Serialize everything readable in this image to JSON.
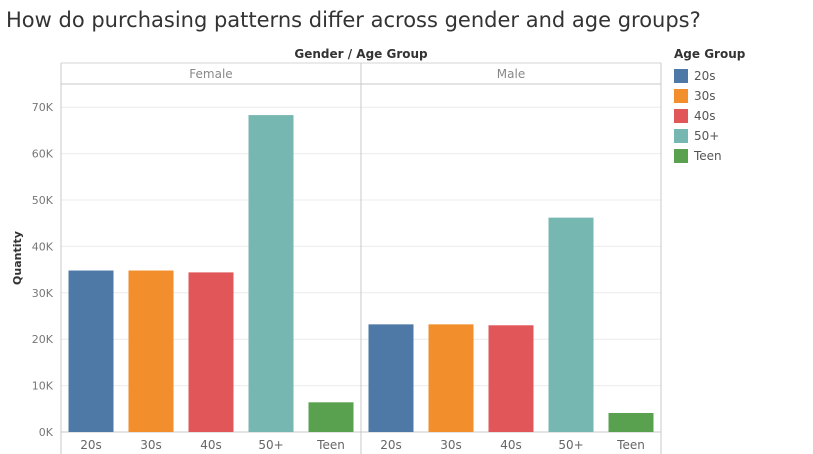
{
  "title": "How do purchasing patterns differ across gender and age groups?",
  "chart_data": {
    "type": "bar",
    "header_label": "Gender  /  Age Group",
    "ylabel": "Quantity",
    "ylim": [
      0,
      75000
    ],
    "yticks": [
      0,
      10000,
      20000,
      30000,
      40000,
      50000,
      60000,
      70000
    ],
    "ytick_labels": [
      "0K",
      "10K",
      "20K",
      "30K",
      "40K",
      "50K",
      "60K",
      "70K"
    ],
    "grid": true,
    "legend_placement": "right",
    "categories": [
      "20s",
      "30s",
      "40s",
      "50+",
      "Teen"
    ],
    "colors": {
      "20s": "#4e79a7",
      "30s": "#f28e2b",
      "40s": "#e15759",
      "50+": "#76b7b2",
      "Teen": "#59a14f"
    },
    "panels": [
      {
        "name": "Female",
        "values": [
          34800,
          34800,
          34400,
          68300,
          6400
        ]
      },
      {
        "name": "Male",
        "values": [
          23200,
          23200,
          23000,
          46200,
          4100
        ]
      }
    ]
  },
  "legend": {
    "title": "Age Group",
    "items": [
      {
        "label": "20s",
        "color": "#4e79a7"
      },
      {
        "label": "30s",
        "color": "#f28e2b"
      },
      {
        "label": "40s",
        "color": "#e15759"
      },
      {
        "label": "50+",
        "color": "#76b7b2"
      },
      {
        "label": "Teen",
        "color": "#59a14f"
      }
    ]
  }
}
